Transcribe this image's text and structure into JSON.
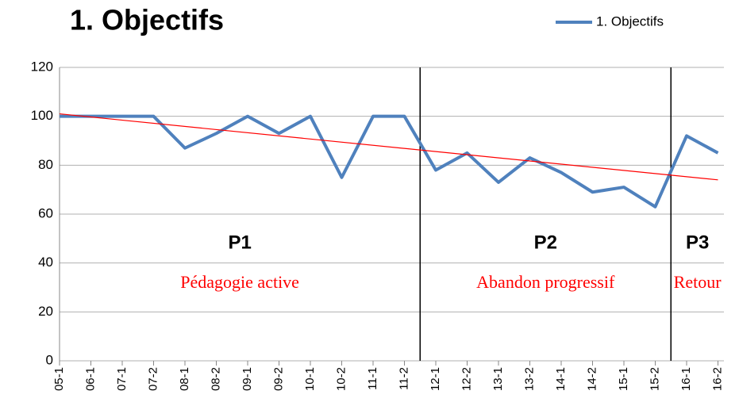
{
  "chart_data": {
    "type": "line",
    "title": "1. Objectifs",
    "categories": [
      "05-1",
      "06-1",
      "07-1",
      "07-2",
      "08-1",
      "08-2",
      "09-1",
      "09-2",
      "10-1",
      "10-2",
      "11-1",
      "11-2",
      "12-1",
      "12-2",
      "13-1",
      "13-2",
      "14-1",
      "14-2",
      "15-1",
      "15-2",
      "16-1",
      "16-2"
    ],
    "series": [
      {
        "name": "1. Objectifs",
        "color": "#4f81bd",
        "values": [
          100,
          100,
          100,
          100,
          87,
          93,
          100,
          93,
          100,
          75,
          100,
          100,
          78,
          85,
          73,
          83,
          77,
          69,
          71,
          63,
          92,
          85
        ]
      }
    ],
    "trendline": {
      "color": "#ff0000",
      "start": 101,
      "end": 74
    },
    "periods": [
      {
        "label": "P1",
        "description": "Pédagogie active",
        "from": "05-1",
        "to": "11-2"
      },
      {
        "label": "P2",
        "description": "Abandon progressif",
        "from": "12-1",
        "to": "15-2"
      },
      {
        "label": "P3",
        "description": "Retour",
        "from": "16-1",
        "to": "16-2"
      }
    ],
    "ylim": [
      0,
      120
    ],
    "yticks": [
      0,
      20,
      40,
      60,
      80,
      100,
      120
    ],
    "grid": true,
    "legend": "top-right"
  }
}
